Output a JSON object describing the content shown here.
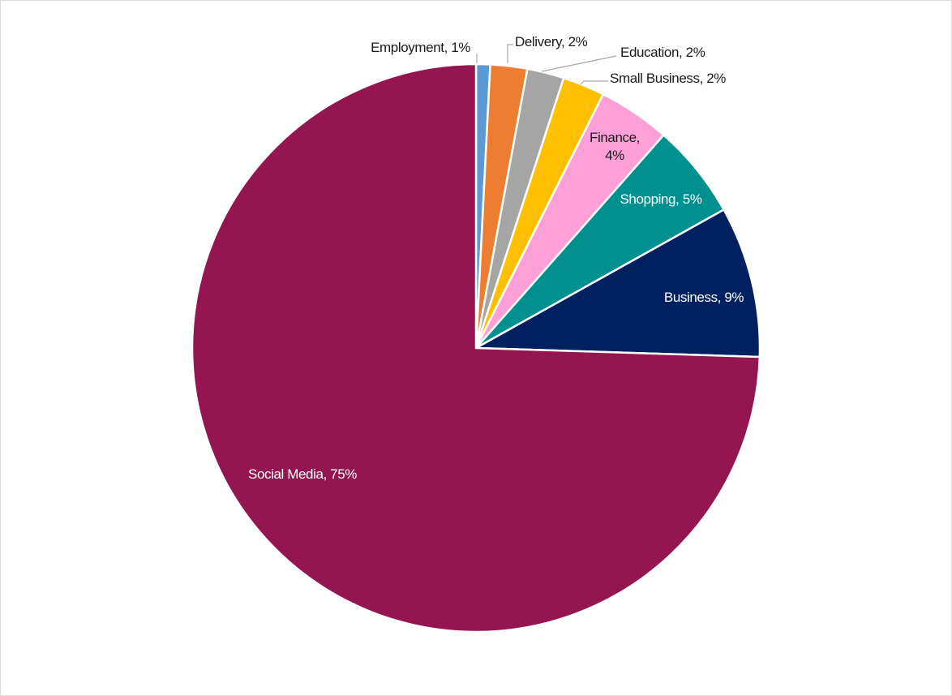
{
  "chart_data": {
    "type": "pie",
    "title": "",
    "start": "12 o'clock",
    "direction": "clockwise",
    "legend": "none",
    "slices": [
      {
        "label": "Employment, 1%",
        "name": "Employment",
        "value": 0.8,
        "color": "#5b9bd5",
        "label_style": "outside-leader"
      },
      {
        "label": "Delivery, 2%",
        "name": "Delivery",
        "value": 2.1,
        "color": "#ed7d31",
        "label_style": "outside-leader"
      },
      {
        "label": "Education, 2%",
        "name": "Education",
        "value": 2.1,
        "color": "#a5a5a5",
        "label_style": "outside-leader"
      },
      {
        "label": "Small Business, 2%",
        "name": "Small Business",
        "value": 2.4,
        "color": "#ffc000",
        "label_style": "outside-leader"
      },
      {
        "label": [
          "Finance,",
          "4%"
        ],
        "name": "Finance",
        "value": 4.1,
        "color": "#ff9fd7",
        "label_style": "inside"
      },
      {
        "label": "Shopping, 5%",
        "name": "Shopping",
        "value": 5.4,
        "color": "#009090",
        "label_style": "inside"
      },
      {
        "label": "Business, 9%",
        "name": "Business",
        "value": 8.6,
        "color": "#002060",
        "label_style": "inside"
      },
      {
        "label": "Social Media, 75%",
        "name": "Social Media",
        "value": 74.5,
        "color": "#94154f",
        "label_style": "inside"
      }
    ]
  }
}
